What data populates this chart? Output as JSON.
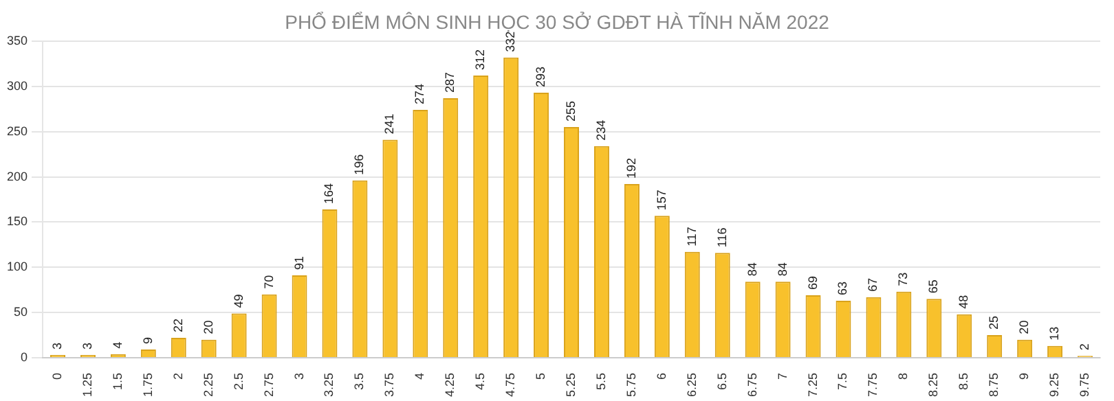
{
  "chart_data": {
    "type": "bar",
    "title": "PHỔ ĐIỂM MÔN SINH HỌC 30 SỞ GDĐT HÀ TĨNH NĂM 2022",
    "categories": [
      "0",
      "1.25",
      "1.5",
      "1.75",
      "2",
      "2.25",
      "2.5",
      "2.75",
      "3",
      "3.25",
      "3.5",
      "3.75",
      "4",
      "4.25",
      "4.5",
      "4.75",
      "5",
      "5.25",
      "5.5",
      "5.75",
      "6",
      "6.25",
      "6.5",
      "6.75",
      "7",
      "7.25",
      "7.5",
      "7.75",
      "8",
      "8.25",
      "8.5",
      "8.75",
      "9",
      "9.25",
      "9.75"
    ],
    "values": [
      3,
      3,
      4,
      9,
      22,
      20,
      49,
      70,
      91,
      164,
      196,
      241,
      274,
      287,
      312,
      332,
      293,
      255,
      234,
      192,
      157,
      117,
      116,
      84,
      84,
      69,
      63,
      67,
      73,
      65,
      48,
      25,
      20,
      13,
      2
    ],
    "color": "#f8c12c",
    "ylim": [
      0,
      350
    ],
    "yticks": [
      0,
      50,
      100,
      150,
      200,
      250,
      300,
      350
    ],
    "grid": "y",
    "data_labels": true,
    "legend": false
  }
}
